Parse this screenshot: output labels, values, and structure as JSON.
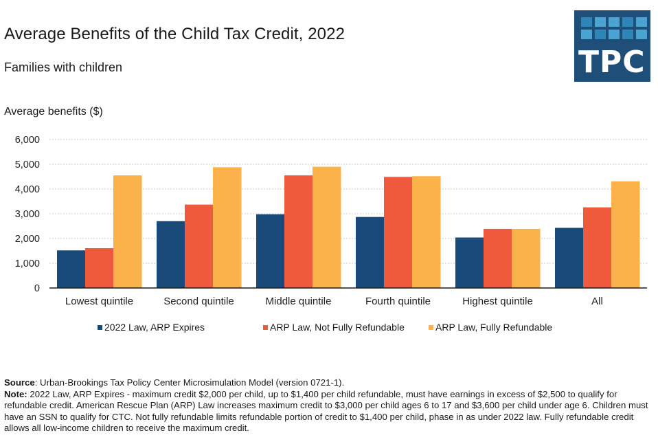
{
  "header": {
    "title": "Average Benefits of the Child Tax Credit, 2022",
    "subtitle": "Families with children",
    "logo_text": "TPC",
    "logo_bg": "#1f4e79",
    "logo_cells": [
      "#2e86b8",
      "#4aa3d0",
      "#4aa3d0",
      "#2e86b8",
      "#4aa3d0",
      "#4aa3d0",
      "#2e86b8",
      "#4aa3d0",
      "#2e86b8",
      "#4aa3d0"
    ]
  },
  "chart_data": {
    "type": "bar",
    "title": "Average Benefits of the Child Tax Credit, 2022",
    "subtitle": "Families with children",
    "xlabel": "",
    "ylabel": "Average benefits ($)",
    "ylim": [
      0,
      6000
    ],
    "yticks": [
      0,
      1000,
      2000,
      3000,
      4000,
      5000,
      6000
    ],
    "ytick_labels": [
      "0",
      "1,000",
      "2,000",
      "3,000",
      "4,000",
      "5,000",
      "6,000"
    ],
    "grid": "horizontal-dotted",
    "legend_position": "bottom",
    "categories": [
      "Lowest quintile",
      "Second quintile",
      "Middle quintile",
      "Fourth quintile",
      "Highest quintile",
      "All"
    ],
    "series": [
      {
        "name": "2022 Law, ARP Expires",
        "color": "#1a4a7a",
        "values": [
          1520,
          2700,
          2980,
          2870,
          2040,
          2430
        ]
      },
      {
        "name": "ARP Law, Not Fully Refundable",
        "color": "#f05a3c",
        "values": [
          1610,
          3370,
          4550,
          4490,
          2390,
          3260
        ]
      },
      {
        "name": "ARP Law, Fully Refundable",
        "color": "#fbb24a",
        "values": [
          4550,
          4880,
          4900,
          4520,
          2390,
          4310
        ]
      }
    ]
  },
  "footer": {
    "source_label": "Source",
    "source_text": ": Urban-Brookings Tax Policy Center Microsimulation Model (version 0721-1).",
    "note_label": "Note:",
    "note_text": " 2022 Law, ARP Expires - maximum credit $2,000 per child, up to $1,400 per child refundable, must have earnings in excess of $2,500 to qualify for refundable credit. American Rescue Plan (ARP) Law increases maximum credit to $3,000 per child ages 6 to 17 and $3,600 per child under age 6. Children must have an SSN to qualify for CTC. Not fully refundable limits refundable portion of credit to $1,400 per child, phase in as under 2022 law. Fully refundable credit allows all low-income children to receive the maximum credit."
  }
}
